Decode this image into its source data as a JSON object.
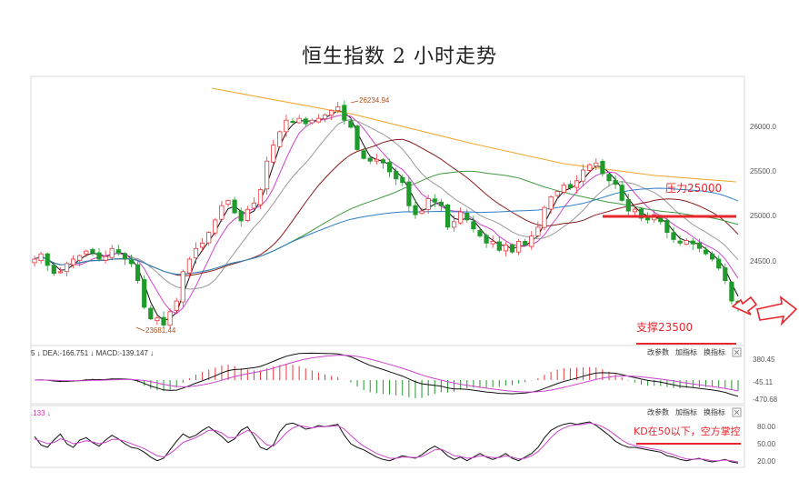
{
  "title": "恒生指数 2 小时走势",
  "chart_data": [
    {
      "type": "candlestick",
      "price_axis": {
        "ticks": [
          "26000.0",
          "25500.0",
          "25000.0",
          "24500.0"
        ],
        "ylim": [
          23550,
          26550
        ]
      },
      "high_label": "26234.94",
      "low_label": "23681.44",
      "annotations": {
        "resistance": "压力25000",
        "resistance_level": 25000,
        "support": "支撑23500",
        "support_level": 23500
      },
      "colors": {
        "up": "#e8383d",
        "down": "#1f9a2b",
        "ma_long": "#f0a830",
        "ma_blue": "#2f7fc8",
        "ma_green": "#3f9a3f",
        "ma_dark": "#8b1a1a",
        "ma_gray": "#999999",
        "ma_magenta": "#cc44cc",
        "ma_black": "#111111"
      },
      "closes": [
        24520,
        24580,
        24450,
        24360,
        24380,
        24470,
        24520,
        24560,
        24610,
        24590,
        24520,
        24550,
        24640,
        24590,
        24520,
        24470,
        24280,
        23980,
        23850,
        23860,
        23780,
        23930,
        24050,
        24380,
        24520,
        24640,
        24700,
        24820,
        24960,
        25120,
        25180,
        25040,
        24950,
        25080,
        25150,
        25300,
        25620,
        25800,
        25950,
        26080,
        26060,
        26100,
        26040,
        26080,
        26100,
        26140,
        26190,
        26230,
        26080,
        26000,
        25750,
        25650,
        25620,
        25640,
        25600,
        25500,
        25420,
        25380,
        25120,
        25020,
        25060,
        25200,
        25160,
        25120,
        24880,
        24940,
        25050,
        24960,
        24860,
        24780,
        24700,
        24720,
        24620,
        24680,
        24600,
        24720,
        24680,
        24780,
        24880,
        25100,
        25220,
        25280,
        25350,
        25320,
        25400,
        25520,
        25580,
        25600,
        25480,
        25400,
        25360,
        25180,
        25060,
        25080,
        24980,
        24960,
        25020,
        24940,
        24820,
        24740,
        24700,
        24730,
        24690,
        24640,
        24580,
        24520,
        24420,
        24280,
        24050,
        23980
      ]
    },
    {
      "type": "macd",
      "header": "5 ↓ DEA:-166.751 ↓ MACD:-139.147 ↓",
      "buttons": [
        "改参数",
        "加指标",
        "换指标"
      ],
      "axis": [
        "380.45",
        "-45.11",
        "-470.68"
      ]
    },
    {
      "type": "kd",
      "header": ".133 ↓",
      "buttons": [
        "改参数",
        "加指标",
        "换指标"
      ],
      "axis": [
        "80.00",
        "50.00",
        "20.00"
      ],
      "annotation": "KD在50以下，空方掌控",
      "annotation_level": 50,
      "k": [
        62,
        48,
        44,
        56,
        66,
        50,
        44,
        56,
        60,
        52,
        46,
        56,
        64,
        58,
        50,
        44,
        42,
        36,
        28,
        22,
        26,
        40,
        54,
        66,
        60,
        64,
        72,
        78,
        70,
        62,
        52,
        58,
        72,
        78,
        62,
        44,
        40,
        48,
        70,
        82,
        84,
        80,
        74,
        76,
        80,
        78,
        80,
        82,
        64,
        50,
        44,
        40,
        34,
        28,
        24,
        22,
        26,
        30,
        28,
        26,
        32,
        40,
        46,
        40,
        30,
        24,
        28,
        22,
        28,
        34,
        28,
        24,
        28,
        34,
        26,
        22,
        28,
        34,
        44,
        60,
        72,
        78,
        82,
        84,
        82,
        84,
        86,
        80,
        72,
        64,
        54,
        48,
        44,
        44,
        42,
        40,
        38,
        36,
        30,
        28,
        24,
        22,
        24,
        26,
        22,
        20,
        22,
        24,
        20,
        18
      ],
      "d": [
        58,
        54,
        50,
        52,
        58,
        55,
        50,
        52,
        55,
        53,
        50,
        52,
        57,
        57,
        54,
        50,
        46,
        42,
        36,
        30,
        28,
        34,
        42,
        52,
        56,
        60,
        66,
        72,
        72,
        68,
        60,
        60,
        66,
        72,
        68,
        58,
        48,
        46,
        56,
        68,
        76,
        80,
        78,
        76,
        78,
        78,
        79,
        80,
        74,
        64,
        54,
        46,
        40,
        34,
        30,
        26,
        26,
        28,
        28,
        27,
        29,
        34,
        40,
        41,
        36,
        30,
        29,
        26,
        27,
        30,
        29,
        27,
        27,
        30,
        28,
        25,
        26,
        30,
        37,
        48,
        60,
        70,
        76,
        80,
        81,
        82,
        84,
        82,
        78,
        72,
        64,
        56,
        50,
        47,
        45,
        43,
        41,
        39,
        35,
        32,
        28,
        25,
        24,
        25,
        24,
        22,
        22,
        23,
        22,
        20
      ]
    }
  ]
}
